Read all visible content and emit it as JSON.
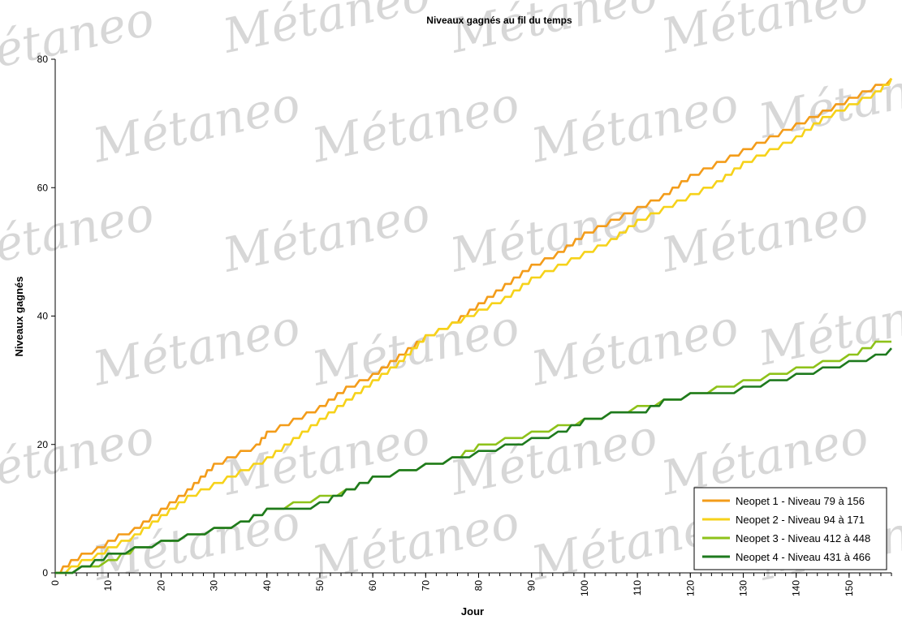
{
  "watermark": {
    "text": "Métaneo",
    "color": "#b8b8b8"
  },
  "chart_data": {
    "type": "line",
    "title": "Niveaux gagnés au fil du temps",
    "xlabel": "Jour",
    "ylabel": "Niveaux gagnés",
    "xlim": [
      0,
      158
    ],
    "ylim": [
      0,
      80
    ],
    "x_ticks": [
      0,
      10,
      20,
      30,
      40,
      50,
      60,
      70,
      80,
      90,
      100,
      110,
      120,
      130,
      140,
      150
    ],
    "y_ticks": [
      0,
      20,
      40,
      60,
      80
    ],
    "grid": false,
    "legend_position": "bottom-right",
    "step_lines": true,
    "series": [
      {
        "name": "Neopet 1 - Niveau 79 à 156",
        "color": "#f39c1a",
        "points": [
          [
            0,
            0
          ],
          [
            3,
            2
          ],
          [
            5,
            3
          ],
          [
            8,
            4
          ],
          [
            10,
            5
          ],
          [
            12,
            6
          ],
          [
            15,
            7
          ],
          [
            20,
            10
          ],
          [
            25,
            13
          ],
          [
            30,
            17
          ],
          [
            35,
            19
          ],
          [
            38,
            20
          ],
          [
            40,
            22
          ],
          [
            45,
            24
          ],
          [
            50,
            26
          ],
          [
            55,
            29
          ],
          [
            60,
            31
          ],
          [
            65,
            34
          ],
          [
            70,
            37
          ],
          [
            75,
            39
          ],
          [
            80,
            42
          ],
          [
            85,
            45
          ],
          [
            90,
            48
          ],
          [
            95,
            50
          ],
          [
            100,
            53
          ],
          [
            105,
            55
          ],
          [
            110,
            57
          ],
          [
            115,
            59
          ],
          [
            120,
            62
          ],
          [
            125,
            64
          ],
          [
            130,
            66
          ],
          [
            135,
            68
          ],
          [
            140,
            70
          ],
          [
            145,
            72
          ],
          [
            150,
            74
          ],
          [
            155,
            76
          ],
          [
            158,
            77
          ]
        ]
      },
      {
        "name": "Neopet 2 - Niveau 94 à 171",
        "color": "#f6d21a",
        "points": [
          [
            0,
            0
          ],
          [
            3,
            1
          ],
          [
            5,
            2
          ],
          [
            8,
            3
          ],
          [
            10,
            4
          ],
          [
            15,
            6
          ],
          [
            20,
            9
          ],
          [
            25,
            12
          ],
          [
            30,
            14
          ],
          [
            35,
            16
          ],
          [
            40,
            18
          ],
          [
            45,
            21
          ],
          [
            50,
            24
          ],
          [
            55,
            27
          ],
          [
            60,
            30
          ],
          [
            65,
            33
          ],
          [
            70,
            37
          ],
          [
            75,
            39
          ],
          [
            80,
            41
          ],
          [
            85,
            43
          ],
          [
            90,
            46
          ],
          [
            95,
            48
          ],
          [
            100,
            50
          ],
          [
            105,
            52
          ],
          [
            110,
            55
          ],
          [
            115,
            57
          ],
          [
            120,
            59
          ],
          [
            125,
            61
          ],
          [
            130,
            64
          ],
          [
            135,
            66
          ],
          [
            140,
            68
          ],
          [
            145,
            71
          ],
          [
            150,
            73
          ],
          [
            155,
            75
          ],
          [
            158,
            77
          ]
        ]
      },
      {
        "name": "Neopet 3 - Niveau 412 à 448",
        "color": "#8ec21a",
        "points": [
          [
            0,
            0
          ],
          [
            5,
            1
          ],
          [
            10,
            2
          ],
          [
            15,
            4
          ],
          [
            20,
            5
          ],
          [
            25,
            6
          ],
          [
            30,
            7
          ],
          [
            35,
            8
          ],
          [
            40,
            10
          ],
          [
            45,
            11
          ],
          [
            50,
            12
          ],
          [
            55,
            13
          ],
          [
            60,
            15
          ],
          [
            65,
            16
          ],
          [
            70,
            17
          ],
          [
            75,
            18
          ],
          [
            80,
            20
          ],
          [
            85,
            21
          ],
          [
            90,
            22
          ],
          [
            95,
            23
          ],
          [
            100,
            24
          ],
          [
            105,
            25
          ],
          [
            110,
            26
          ],
          [
            115,
            27
          ],
          [
            120,
            28
          ],
          [
            125,
            29
          ],
          [
            130,
            30
          ],
          [
            135,
            31
          ],
          [
            140,
            32
          ],
          [
            145,
            33
          ],
          [
            150,
            34
          ],
          [
            155,
            36
          ],
          [
            158,
            36
          ]
        ]
      },
      {
        "name": "Neopet 4 - Niveau 431 à 466",
        "color": "#1e7a1e",
        "points": [
          [
            0,
            0
          ],
          [
            5,
            1
          ],
          [
            10,
            3
          ],
          [
            15,
            4
          ],
          [
            20,
            5
          ],
          [
            25,
            6
          ],
          [
            30,
            7
          ],
          [
            35,
            8
          ],
          [
            40,
            10
          ],
          [
            45,
            10
          ],
          [
            50,
            11
          ],
          [
            55,
            13
          ],
          [
            60,
            15
          ],
          [
            65,
            16
          ],
          [
            70,
            17
          ],
          [
            75,
            18
          ],
          [
            80,
            19
          ],
          [
            85,
            20
          ],
          [
            90,
            21
          ],
          [
            95,
            22
          ],
          [
            100,
            24
          ],
          [
            105,
            25
          ],
          [
            110,
            25
          ],
          [
            115,
            27
          ],
          [
            120,
            28
          ],
          [
            125,
            28
          ],
          [
            130,
            29
          ],
          [
            135,
            30
          ],
          [
            140,
            31
          ],
          [
            145,
            32
          ],
          [
            150,
            33
          ],
          [
            155,
            34
          ],
          [
            158,
            35
          ]
        ]
      }
    ]
  }
}
